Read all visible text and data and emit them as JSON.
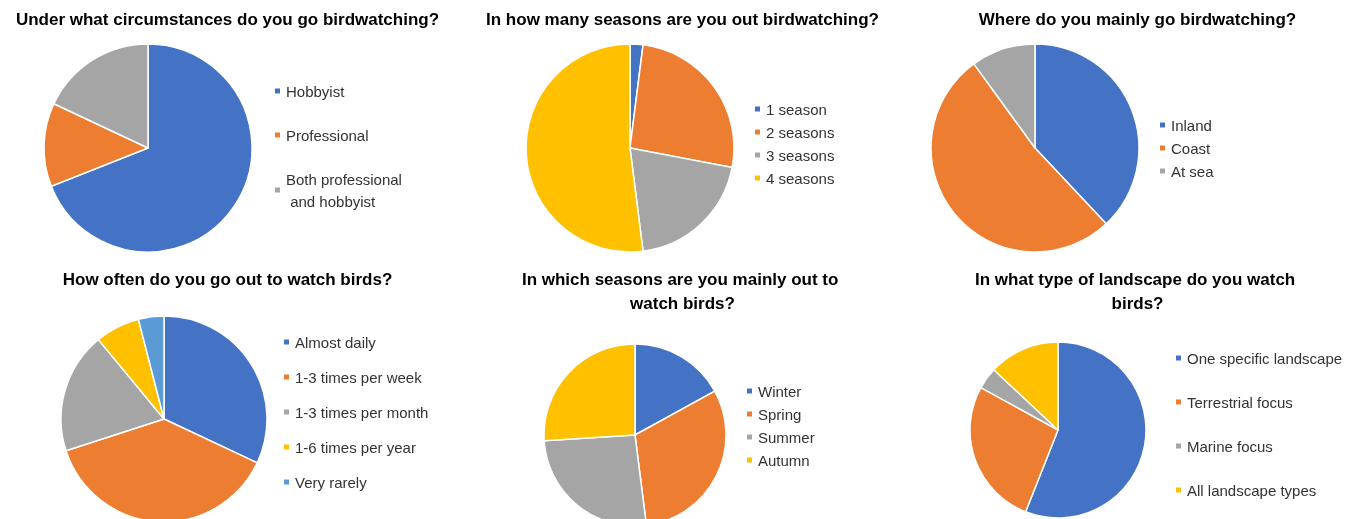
{
  "chart_data": [
    {
      "type": "pie",
      "title": "Under what circumstances do you go birdwatching?",
      "categories": [
        "Hobbyist",
        "Professional",
        "Both professional and hobbyist"
      ],
      "values": [
        69,
        13,
        18
      ],
      "colors": [
        "#4472c4",
        "#ed7d31",
        "#a5a5a5"
      ],
      "legend": "right"
    },
    {
      "type": "pie",
      "title": "In how many seasons are you out birdwatching?",
      "categories": [
        "1 season",
        "2 seasons",
        "3 seasons",
        "4 seasons"
      ],
      "values": [
        2,
        26,
        20,
        52
      ],
      "colors": [
        "#4472c4",
        "#ed7d31",
        "#a5a5a5",
        "#ffc000"
      ],
      "legend": "right"
    },
    {
      "type": "pie",
      "title": "Where do you mainly go birdwatching?",
      "categories": [
        "Inland",
        "Coast",
        "At sea"
      ],
      "values": [
        38,
        52,
        10
      ],
      "colors": [
        "#4472c4",
        "#ed7d31",
        "#a5a5a5"
      ],
      "legend": "right"
    },
    {
      "type": "pie",
      "title": "How often do you go out to watch birds?",
      "categories": [
        "Almost daily",
        "1-3 times per week",
        "1-3 times per month",
        "1-6 times per year",
        "Very rarely"
      ],
      "values": [
        32,
        38,
        19,
        7,
        4
      ],
      "colors": [
        "#4472c4",
        "#ed7d31",
        "#a5a5a5",
        "#ffc000",
        "#5b9bd5"
      ],
      "legend": "right"
    },
    {
      "type": "pie",
      "title": "In which seasons are you mainly out to watch birds?",
      "categories": [
        "Winter",
        "Spring",
        "Summer",
        "Autumn"
      ],
      "values": [
        17,
        31,
        26,
        26
      ],
      "colors": [
        "#4472c4",
        "#ed7d31",
        "#a5a5a5",
        "#ffc000"
      ],
      "legend": "right"
    },
    {
      "type": "pie",
      "title": "In what type of landscape do you watch birds?",
      "categories": [
        "One specific landscape",
        "Terrestrial focus",
        "Marine focus",
        "All landscape types"
      ],
      "values": [
        56,
        27,
        4,
        13
      ],
      "colors": [
        "#4472c4",
        "#ed7d31",
        "#a5a5a5",
        "#ffc000"
      ],
      "legend": "right"
    }
  ]
}
